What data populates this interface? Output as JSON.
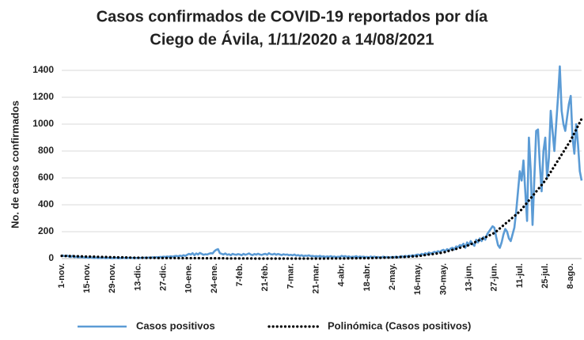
{
  "chart_data": {
    "type": "line",
    "title": "Casos confirmados de COVID-19 reportados por día",
    "subtitle": "Ciego de Ávila, 1/11/2020 a 14/08/2021",
    "y_label": "No. de casos confirmados",
    "categories": [
      "1-nov.",
      null,
      null,
      null,
      null,
      null,
      null,
      null,
      null,
      null,
      null,
      null,
      null,
      null,
      "15-nov.",
      null,
      null,
      null,
      null,
      null,
      null,
      null,
      null,
      null,
      null,
      null,
      null,
      null,
      "29-nov.",
      null,
      null,
      null,
      null,
      null,
      null,
      null,
      null,
      null,
      null,
      null,
      null,
      null,
      "13-dic.",
      null,
      null,
      null,
      null,
      null,
      null,
      null,
      null,
      null,
      null,
      null,
      null,
      null,
      "27-dic.",
      null,
      null,
      null,
      null,
      null,
      null,
      null,
      null,
      null,
      null,
      null,
      null,
      null,
      "10-ene.",
      null,
      null,
      null,
      null,
      null,
      null,
      null,
      null,
      null,
      null,
      null,
      null,
      null,
      "24-ene.",
      null,
      null,
      null,
      null,
      null,
      null,
      null,
      null,
      null,
      null,
      null,
      null,
      null,
      "7-feb.",
      null,
      null,
      null,
      null,
      null,
      null,
      null,
      null,
      null,
      null,
      null,
      null,
      null,
      "21-feb.",
      null,
      null,
      null,
      null,
      null,
      null,
      null,
      null,
      null,
      null,
      null,
      null,
      null,
      "7-mar.",
      null,
      null,
      null,
      null,
      null,
      null,
      null,
      null,
      null,
      null,
      null,
      null,
      null,
      "21-mar.",
      null,
      null,
      null,
      null,
      null,
      null,
      null,
      null,
      null,
      null,
      null,
      null,
      null,
      "4-abr.",
      null,
      null,
      null,
      null,
      null,
      null,
      null,
      null,
      null,
      null,
      null,
      null,
      null,
      "18-abr.",
      null,
      null,
      null,
      null,
      null,
      null,
      null,
      null,
      null,
      null,
      null,
      null,
      null,
      "2-may.",
      null,
      null,
      null,
      null,
      null,
      null,
      null,
      null,
      null,
      null,
      null,
      null,
      null,
      "16-may.",
      null,
      null,
      null,
      null,
      null,
      null,
      null,
      null,
      null,
      null,
      null,
      null,
      null,
      "30-may.",
      null,
      null,
      null,
      null,
      null,
      null,
      null,
      null,
      null,
      null,
      null,
      null,
      null,
      "13-jun.",
      null,
      null,
      null,
      null,
      null,
      null,
      null,
      null,
      null,
      null,
      null,
      null,
      null,
      "27-jun.",
      null,
      null,
      null,
      null,
      null,
      null,
      null,
      null,
      null,
      null,
      null,
      null,
      null,
      "11-jul.",
      null,
      null,
      null,
      null,
      null,
      null,
      null,
      null,
      null,
      null,
      null,
      null,
      null,
      "25-jul.",
      null,
      null,
      null,
      null,
      null,
      null,
      null,
      null,
      null,
      null,
      null,
      null,
      null,
      "8-ago.",
      null,
      null,
      null,
      null,
      null,
      null
    ],
    "series": [
      {
        "name": "Casos positivos",
        "color": "#5b9bd5",
        "line_style": "solid",
        "values": [
          25,
          20,
          18,
          22,
          15,
          12,
          20,
          10,
          14,
          8,
          12,
          9,
          10,
          6,
          8,
          5,
          10,
          6,
          4,
          7,
          3,
          5,
          4,
          6,
          3,
          4,
          5,
          3,
          4,
          3,
          5,
          2,
          4,
          3,
          5,
          4,
          3,
          6,
          4,
          5,
          3,
          4,
          5,
          4,
          6,
          5,
          7,
          6,
          8,
          7,
          9,
          8,
          10,
          9,
          12,
          11,
          14,
          12,
          15,
          13,
          17,
          14,
          18,
          20,
          16,
          22,
          18,
          25,
          20,
          28,
          35,
          30,
          40,
          25,
          38,
          30,
          42,
          35,
          28,
          32,
          30,
          36,
          40,
          38,
          55,
          65,
          70,
          40,
          35,
          30,
          38,
          28,
          32,
          25,
          35,
          30,
          28,
          33,
          30,
          25,
          35,
          28,
          32,
          38,
          30,
          26,
          34,
          29,
          36,
          30,
          27,
          32,
          35,
          28,
          40,
          32,
          30,
          36,
          28,
          34,
          30,
          26,
          32,
          28,
          30,
          25,
          28,
          24,
          30,
          22,
          26,
          20,
          25,
          18,
          22,
          20,
          24,
          18,
          20,
          16,
          18,
          15,
          20,
          14,
          17,
          12,
          16,
          13,
          18,
          12,
          15,
          10,
          14,
          12,
          20,
          15,
          18,
          12,
          16,
          10,
          14,
          12,
          18,
          10,
          15,
          12,
          14,
          10,
          12,
          8,
          15,
          10,
          14,
          9,
          12,
          8,
          10,
          14,
          9,
          12,
          8,
          10,
          12,
          10,
          15,
          9,
          14,
          18,
          12,
          20,
          15,
          22,
          18,
          25,
          20,
          28,
          30,
          25,
          35,
          28,
          40,
          32,
          45,
          38,
          42,
          50,
          45,
          55,
          48,
          60,
          65,
          55,
          70,
          60,
          75,
          80,
          68,
          90,
          85,
          100,
          95,
          110,
          80,
          120,
          100,
          130,
          110,
          95,
          140,
          120,
          150,
          130,
          160,
          140,
          180,
          200,
          220,
          240,
          230,
          160,
          100,
          80,
          120,
          180,
          220,
          200,
          150,
          130,
          180,
          230,
          350,
          500,
          650,
          580,
          730,
          500,
          280,
          900,
          650,
          250,
          600,
          950,
          960,
          700,
          500,
          800,
          900,
          600,
          750,
          1100,
          950,
          800,
          1000,
          1200,
          1430,
          1100,
          1000,
          950,
          1050,
          1150,
          1210,
          900,
          780,
          1000,
          850,
          650,
          580
        ]
      },
      {
        "name": "Polinómica (Casos positivos)",
        "color": "#000000",
        "line_style": "dotted",
        "values": [
          20,
          20,
          19,
          19,
          19,
          18,
          18,
          18,
          17,
          17,
          17,
          16,
          16,
          15,
          15,
          15,
          14,
          14,
          14,
          13,
          13,
          13,
          12,
          12,
          12,
          11,
          11,
          10,
          10,
          10,
          10,
          9,
          9,
          9,
          8,
          8,
          8,
          7,
          7,
          7,
          6,
          6,
          6,
          6,
          6,
          6,
          5,
          5,
          5,
          5,
          5,
          5,
          4,
          4,
          4,
          4,
          4,
          4,
          4,
          4,
          4,
          4,
          4,
          3,
          3,
          3,
          3,
          3,
          3,
          3,
          3,
          3,
          3,
          3,
          3,
          3,
          3,
          2,
          2,
          2,
          2,
          2,
          2,
          2,
          2,
          2,
          2,
          2,
          2,
          2,
          2,
          1,
          1,
          1,
          1,
          1,
          1,
          1,
          1,
          1,
          1,
          1,
          1,
          1,
          1,
          0,
          0,
          0,
          0,
          0,
          0,
          0,
          0,
          0,
          0,
          0,
          0,
          0,
          0,
          0,
          0,
          0,
          0,
          0,
          0,
          0,
          0,
          0,
          0,
          0,
          0,
          0,
          0,
          0,
          0,
          0,
          0,
          0,
          0,
          0,
          0,
          0,
          0,
          0,
          0,
          0,
          0,
          1,
          1,
          1,
          1,
          1,
          1,
          1,
          1,
          1,
          1,
          1,
          2,
          2,
          2,
          2,
          2,
          2,
          3,
          3,
          3,
          3,
          3,
          3,
          4,
          4,
          4,
          5,
          5,
          5,
          6,
          6,
          7,
          7,
          7,
          8,
          8,
          9,
          9,
          10,
          11,
          12,
          12,
          13,
          14,
          14,
          15,
          16,
          17,
          17,
          18,
          20,
          22,
          24,
          26,
          28,
          30,
          32,
          33,
          35,
          37,
          39,
          41,
          43,
          45,
          49,
          53,
          57,
          61,
          65,
          69,
          72,
          76,
          80,
          84,
          88,
          92,
          96,
          100,
          106,
          113,
          119,
          126,
          132,
          139,
          145,
          151,
          158,
          164,
          171,
          177,
          184,
          190,
          201,
          213,
          224,
          236,
          247,
          259,
          270,
          281,
          293,
          304,
          316,
          327,
          339,
          350,
          366,
          383,
          399,
          416,
          432,
          449,
          465,
          481,
          498,
          514,
          531,
          547,
          564,
          580,
          601,
          623,
          644,
          666,
          687,
          709,
          730,
          751,
          773,
          794,
          816,
          837,
          859,
          880,
          907,
          933,
          960,
          987,
          1013,
          1040
        ]
      }
    ],
    "ylim": [
      0,
      1400
    ],
    "yticks": [
      0,
      200,
      400,
      600,
      800,
      1000,
      1200,
      1400
    ],
    "grid": true,
    "legend": "bottom"
  }
}
